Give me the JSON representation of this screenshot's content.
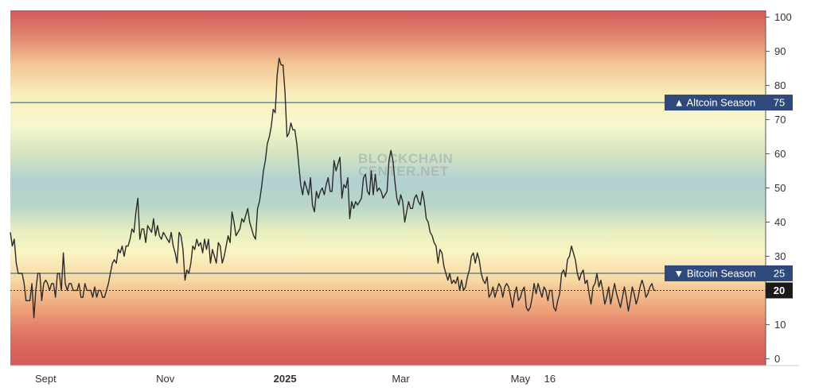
{
  "watermark": {
    "line1": "BLOCKCHAIN",
    "line2": "CENTER.NET"
  },
  "colors": {
    "line": "#2b2b2b",
    "threshold_line": "#3e5d8f",
    "tag_bg": "#2e4a7d",
    "current_tag_bg": "#1a1a1a"
  },
  "chart_data": {
    "type": "line",
    "title": "",
    "xlabel": "",
    "ylabel": "",
    "ylim": [
      -2,
      102
    ],
    "y_ticks": [
      0,
      10,
      20,
      30,
      40,
      50,
      60,
      70,
      80,
      90,
      100
    ],
    "x_ticks": [
      {
        "label": "Sept",
        "t": 18,
        "bold": false
      },
      {
        "label": "Nov",
        "t": 79,
        "bold": false
      },
      {
        "label": "2025",
        "t": 140,
        "bold": true
      },
      {
        "label": "Mar",
        "t": 199,
        "bold": false
      },
      {
        "label": "May",
        "t": 260,
        "bold": false
      },
      {
        "label": "16",
        "t": 275,
        "bold": false
      }
    ],
    "thresholds": [
      {
        "name": "Altcoin Season",
        "value": 75,
        "label": "75",
        "arrow": "▲"
      },
      {
        "name": "Bitcoin Season",
        "value": 25,
        "label": "25",
        "arrow": "▼"
      }
    ],
    "current": {
      "value": 20,
      "label": "20"
    },
    "series": [
      {
        "t_start": 0,
        "t_step": 1,
        "values": [
          37,
          33,
          35,
          28,
          25,
          25,
          25,
          22,
          17,
          17,
          17,
          22,
          12,
          20,
          25,
          25,
          17,
          22,
          23,
          22,
          20,
          22,
          22,
          18,
          25,
          25,
          20,
          31,
          22,
          20,
          22,
          22,
          20,
          20,
          20,
          22,
          18,
          18,
          22,
          20,
          20,
          20,
          18,
          21,
          18,
          20,
          20,
          18,
          18,
          20,
          22,
          25,
          28,
          29,
          28,
          32,
          31,
          33,
          30,
          33,
          33,
          35,
          38,
          37,
          43,
          47,
          35,
          38,
          38,
          34,
          39,
          38,
          37,
          41,
          36,
          39,
          36,
          35,
          37,
          36,
          35,
          34,
          37,
          33,
          31,
          28,
          37,
          36,
          32,
          23,
          26,
          25,
          28,
          33,
          32,
          35,
          33,
          34,
          31,
          35,
          32,
          35,
          28,
          32,
          30,
          28,
          34,
          33,
          28,
          30,
          33,
          36,
          34,
          43,
          40,
          36,
          37,
          38,
          41,
          40,
          42,
          44,
          40,
          38,
          36,
          35,
          44,
          46,
          50,
          55,
          58,
          63,
          65,
          68,
          73,
          72,
          83,
          88,
          86,
          86,
          78,
          65,
          66,
          69,
          67,
          67,
          63,
          57,
          51,
          48,
          52,
          50,
          48,
          53,
          45,
          43,
          49,
          47,
          49,
          50,
          48,
          51,
          53,
          49,
          49,
          58,
          55,
          57,
          59,
          47,
          51,
          50,
          53,
          41,
          46,
          44,
          46,
          45,
          46,
          47,
          53,
          54,
          49,
          48,
          55,
          48,
          54,
          49,
          50,
          49,
          47,
          48,
          49,
          58,
          61,
          58,
          52,
          47,
          45,
          48,
          46,
          40,
          43,
          46,
          44,
          44,
          47,
          48,
          46,
          45,
          49,
          46,
          41,
          40,
          37,
          36,
          34,
          33,
          28,
          32,
          31,
          27,
          25,
          23,
          25,
          22,
          23,
          22,
          24,
          20,
          23,
          20,
          21,
          24,
          26,
          30,
          31,
          28,
          31,
          29,
          25,
          23,
          22,
          24,
          18,
          19,
          21,
          18,
          20,
          22,
          21,
          18,
          21,
          22,
          21,
          18,
          15,
          19,
          21,
          17,
          18,
          20,
          21,
          15,
          14,
          15,
          18,
          22,
          19,
          22,
          20,
          18,
          21,
          20,
          17,
          20,
          20,
          15,
          14,
          17,
          19,
          25,
          26,
          24,
          29,
          30,
          33,
          31,
          29,
          25,
          23,
          25,
          26,
          22,
          23,
          19,
          16,
          21,
          22,
          25,
          21,
          23,
          20,
          16,
          18,
          21,
          16,
          19,
          22,
          19,
          17,
          15,
          18,
          21,
          18,
          14,
          17,
          21,
          19,
          16,
          18,
          21,
          23,
          21,
          18,
          19,
          21,
          22,
          20,
          20
        ]
      }
    ]
  }
}
